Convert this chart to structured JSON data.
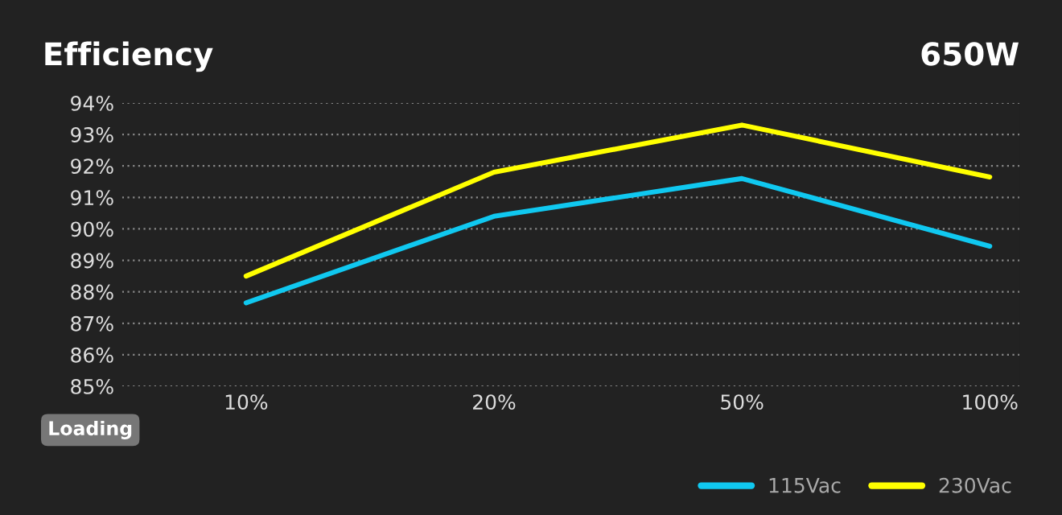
{
  "chart_data": {
    "type": "line",
    "title": "Efficiency",
    "subtitle": "650W",
    "xlabel": "Loading",
    "categories": [
      "10%",
      "20%",
      "50%",
      "100%"
    ],
    "series": [
      {
        "name": "115Vac",
        "color": "#10c8f0",
        "values": [
          87.65,
          90.4,
          91.6,
          89.45
        ]
      },
      {
        "name": "230Vac",
        "color": "#ffff00",
        "values": [
          88.5,
          91.8,
          93.3,
          91.65
        ]
      }
    ],
    "ylim": [
      85,
      94
    ],
    "yticks": [
      {
        "value": 85,
        "label": "85%"
      },
      {
        "value": 86,
        "label": "86%"
      },
      {
        "value": 87,
        "label": "87%"
      },
      {
        "value": 88,
        "label": "88%"
      },
      {
        "value": 89,
        "label": "89%"
      },
      {
        "value": 90,
        "label": "90%"
      },
      {
        "value": 91,
        "label": "91%"
      },
      {
        "value": 92,
        "label": "92%"
      },
      {
        "value": 93,
        "label": "93%"
      },
      {
        "value": 94,
        "label": "94%"
      }
    ],
    "grid": "y",
    "legend": "bottom right",
    "marker": "none",
    "line_style": "solid"
  }
}
